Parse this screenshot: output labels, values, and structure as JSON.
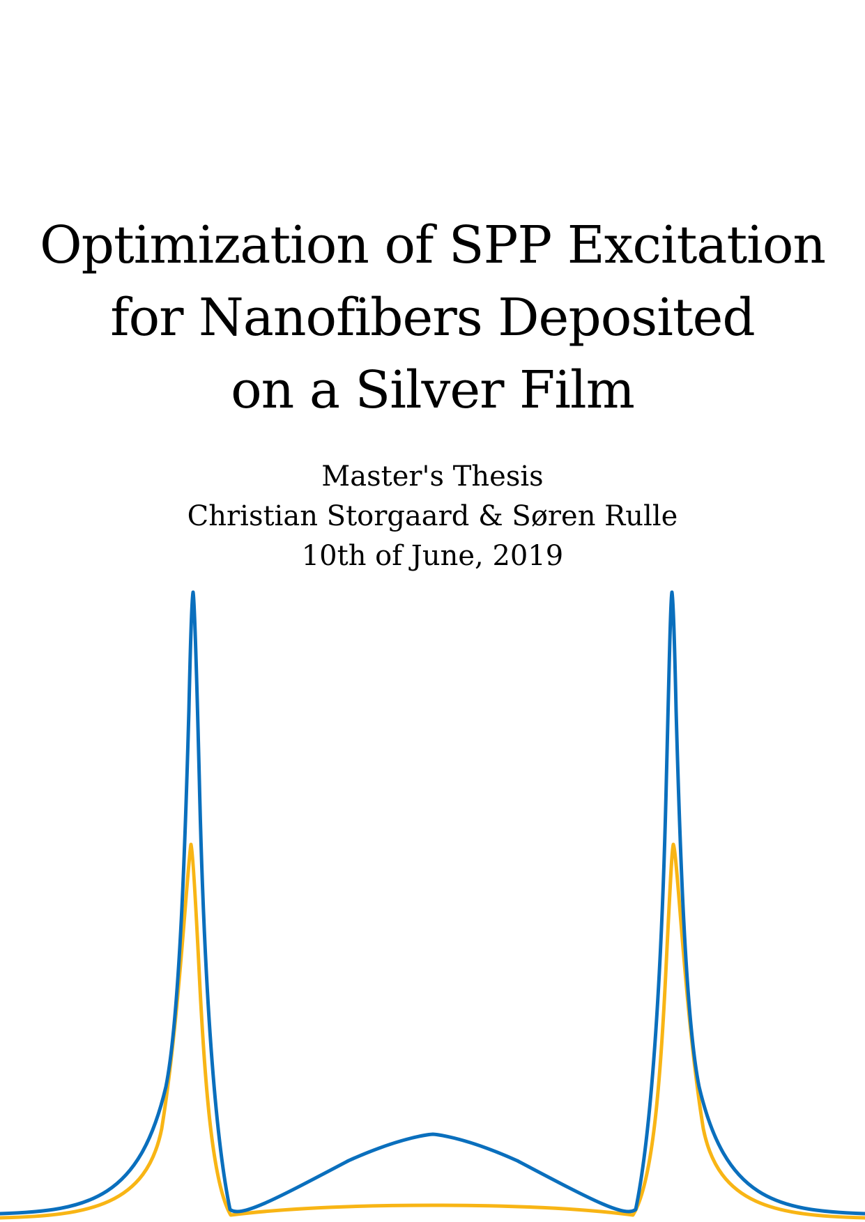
{
  "cover": {
    "title_lines": [
      "Optimization of SPP Excitation",
      "for Nanofibers Deposited",
      "on a Silver Film"
    ],
    "thesis_type": "Master's Thesis",
    "authors": "Christian Storgaard & Søren Rulle",
    "date": "10th of June, 2019"
  },
  "decoration": {
    "colors": {
      "blue": "#0a6fbd",
      "orange": "#f8b515"
    }
  }
}
